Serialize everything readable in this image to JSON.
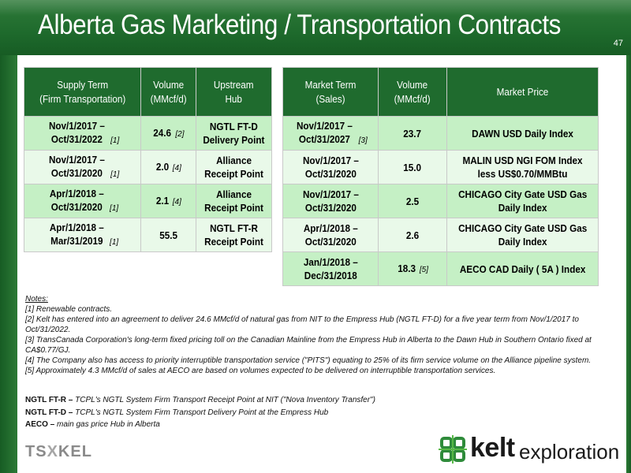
{
  "header": {
    "title": "Alberta Gas Marketing / Transportation Contracts",
    "page_number": "47"
  },
  "supply_table": {
    "headers": [
      "Supply Term\n(Firm Transportation)",
      "Volume\n(MMcf/d)",
      "Upstream\nHub"
    ],
    "rows": [
      {
        "term": "Nov/1/2017 –\nOct/31/2022",
        "term_fn": "[1]",
        "volume": "24.6",
        "volume_fn": "[2]",
        "hub": "NGTL FT-D\nDelivery Point"
      },
      {
        "term": "Nov/1/2017 –\nOct/31/2020",
        "term_fn": "[1]",
        "volume": "2.0",
        "volume_fn": "[4]",
        "hub": "Alliance\nReceipt Point"
      },
      {
        "term": "Apr/1/2018 –\nOct/31/2020",
        "term_fn": "[1]",
        "volume": "2.1",
        "volume_fn": "[4]",
        "hub": "Alliance\nReceipt Point"
      },
      {
        "term": "Apr/1/2018 –\nMar/31/2019",
        "term_fn": "[1]",
        "volume": "55.5",
        "volume_fn": "",
        "hub": "NGTL FT-R\nReceipt Point"
      }
    ]
  },
  "market_table": {
    "headers": [
      "Market Term\n(Sales)",
      "Volume\n(MMcf/d)",
      "Market Price"
    ],
    "rows": [
      {
        "term": "Nov/1/2017 –\nOct/31/2027",
        "term_fn": "[3]",
        "volume": "23.7",
        "volume_fn": "",
        "price": "DAWN USD Daily Index"
      },
      {
        "term": "Nov/1/2017 –\nOct/31/2020",
        "term_fn": "",
        "volume": "15.0",
        "volume_fn": "",
        "price": "MALIN USD NGI FOM Index\nless US$0.70/MMBtu"
      },
      {
        "term": "Nov/1/2017 –\nOct/31/2020",
        "term_fn": "",
        "volume": "2.5",
        "volume_fn": "",
        "price": "CHICAGO City Gate USD Gas\nDaily Index"
      },
      {
        "term": "Apr/1/2018 –\nOct/31/2020",
        "term_fn": "",
        "volume": "2.6",
        "volume_fn": "",
        "price": "CHICAGO City Gate USD Gas\nDaily Index"
      },
      {
        "term": "Jan/1/2018 –\nDec/31/2018",
        "term_fn": "",
        "volume": "18.3",
        "volume_fn": "[5]",
        "price": "AECO CAD Daily ( 5A ) Index"
      }
    ]
  },
  "notes": {
    "label": "Notes:",
    "items": [
      "[1] Renewable contracts.",
      "[2] Kelt has entered into an agreement to deliver 24.6 MMcf/d of natural gas from NIT to the Empress Hub (NGTL FT-D) for a five year term from Nov/1/2017 to Oct/31/2022.",
      "[3] TransCanada Corporation's long-term fixed pricing toll on the Canadian Mainline from the Empress Hub in Alberta to the Dawn Hub in Southern Ontario fixed at CA$0.77/GJ.",
      "[4] The Company also has access to priority interruptible transportation service (\"PITS\") equating to 25% of its firm service volume on the Alliance pipeline system.",
      "[5] Approximately 4.3 MMcf/d of sales at AECO are based on volumes expected to be delivered on interruptible transportation services."
    ]
  },
  "definitions": [
    {
      "term": "NGTL FT-R –",
      "desc": "TCPL's NGTL System Firm Transport Receipt Point at NIT (\"Nova Inventory Transfer\")"
    },
    {
      "term": "NGTL FT-D –",
      "desc": "TCPL's NGTL System Firm Transport Delivery Point at the Empress Hub"
    },
    {
      "term": "AECO –",
      "desc": "main gas price Hub in Alberta"
    }
  ],
  "footer": {
    "tsx_left": "TS",
    "tsx_x": "X",
    "tsx_right": "KEL",
    "logo_word": "kelt",
    "logo_word2": "exploration"
  },
  "colors": {
    "header_green": "#1f6b2e",
    "row_dark": "#c5f0c5",
    "row_light": "#e9f9e9"
  }
}
